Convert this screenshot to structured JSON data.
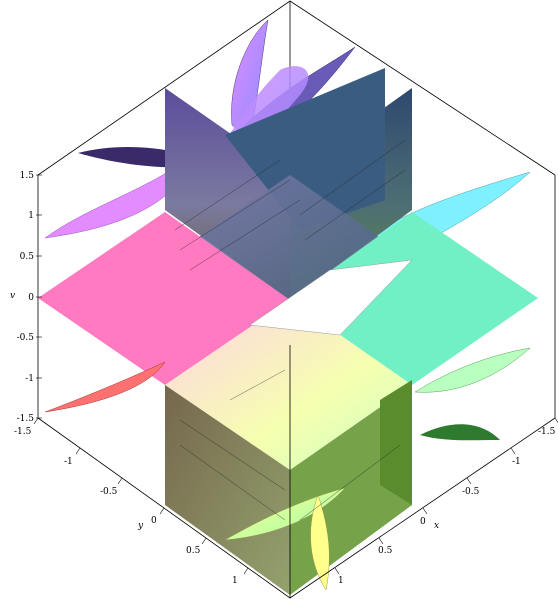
{
  "chart_data": {
    "type": "surface3d",
    "title": "",
    "axes": {
      "x": {
        "label": "x",
        "range": [
          -1.5,
          1.5
        ],
        "ticks": [
          "-1.5",
          "-1",
          "-0.5",
          "0",
          "0.5",
          "1"
        ]
      },
      "y": {
        "label": "y",
        "range": [
          -1.5,
          1.5
        ],
        "ticks": [
          "-1.5",
          "-1",
          "-0.5",
          "0",
          "0.5",
          "1"
        ]
      },
      "v": {
        "label": "v",
        "range": [
          -1.5,
          1.5
        ],
        "ticks": [
          "1.5",
          "1",
          "0.5",
          "0",
          "-0.5",
          "-1",
          "-1.5"
        ]
      }
    },
    "surfaces": [
      {
        "plane": "v=0",
        "colors": [
          "#ff6fb8",
          "#6ff2c2",
          "#f4ff9c",
          "#ffffff"
        ]
      },
      {
        "plane": "x=0",
        "colors": [
          "#5a4a96",
          "#3a5a78",
          "#7d8a5a",
          "#5e4a3e"
        ]
      },
      {
        "plane": "y=0",
        "colors": [
          "#6a5aa0",
          "#2e4a6e",
          "#4c7a3a",
          "#5a3a36"
        ]
      },
      {
        "plane": "curved-upper",
        "colors": [
          "#e48aff",
          "#8f8fff",
          "#7fffff"
        ]
      },
      {
        "plane": "curved-lower",
        "colors": [
          "#ff7070",
          "#ffff8c",
          "#9cff9c"
        ]
      }
    ],
    "grid": false,
    "legend": "none"
  }
}
